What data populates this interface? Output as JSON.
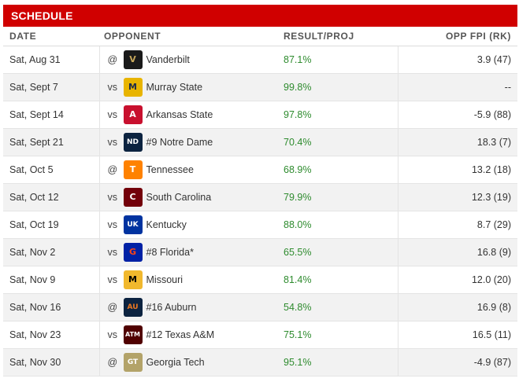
{
  "title": "SCHEDULE",
  "columns": {
    "date": "DATE",
    "opponent": "OPPONENT",
    "result": "RESULT/PROJ",
    "fpi": "OPP FPI (RK)"
  },
  "accent": "#d00000",
  "result_color": "#2e8b2e",
  "games": [
    {
      "date": "Sat, Aug 31",
      "ha": "@",
      "opponent": "Vanderbilt",
      "result": "87.1%",
      "fpi": "3.9 (47)",
      "logo": {
        "icon": "vanderbilt-logo-icon",
        "glyph": "V",
        "bg": "#1a1a1a",
        "fg": "#c8a85c"
      }
    },
    {
      "date": "Sat, Sept 7",
      "ha": "vs",
      "opponent": "Murray State",
      "result": "99.8%",
      "fpi": "--",
      "logo": {
        "icon": "murray-state-logo-icon",
        "glyph": "M",
        "bg": "#e8b400",
        "fg": "#1c2b4a"
      }
    },
    {
      "date": "Sat, Sept 14",
      "ha": "vs",
      "opponent": "Arkansas State",
      "result": "97.8%",
      "fpi": "-5.9 (88)",
      "logo": {
        "icon": "arkansas-state-logo-icon",
        "glyph": "A",
        "bg": "#c8102e",
        "fg": "#ffffff"
      }
    },
    {
      "date": "Sat, Sept 21",
      "ha": "vs",
      "opponent": "#9 Notre Dame",
      "result": "70.4%",
      "fpi": "18.3 (7)",
      "logo": {
        "icon": "notre-dame-logo-icon",
        "glyph": "ND",
        "bg": "#0c2340",
        "fg": "#ffffff"
      }
    },
    {
      "date": "Sat, Oct 5",
      "ha": "@",
      "opponent": "Tennessee",
      "result": "68.9%",
      "fpi": "13.2 (18)",
      "logo": {
        "icon": "tennessee-logo-icon",
        "glyph": "T",
        "bg": "#ff8200",
        "fg": "#ffffff"
      }
    },
    {
      "date": "Sat, Oct 12",
      "ha": "vs",
      "opponent": "South Carolina",
      "result": "79.9%",
      "fpi": "12.3 (19)",
      "logo": {
        "icon": "south-carolina-logo-icon",
        "glyph": "C",
        "bg": "#73000a",
        "fg": "#ffffff"
      }
    },
    {
      "date": "Sat, Oct 19",
      "ha": "vs",
      "opponent": "Kentucky",
      "result": "88.0%",
      "fpi": "8.7 (29)",
      "logo": {
        "icon": "kentucky-logo-icon",
        "glyph": "UK",
        "bg": "#0033a0",
        "fg": "#ffffff"
      }
    },
    {
      "date": "Sat, Nov 2",
      "ha": "vs",
      "opponent": "#8 Florida*",
      "result": "65.5%",
      "fpi": "16.8 (9)",
      "logo": {
        "icon": "florida-logo-icon",
        "glyph": "G",
        "bg": "#0021a5",
        "fg": "#fa4616"
      }
    },
    {
      "date": "Sat, Nov 9",
      "ha": "vs",
      "opponent": "Missouri",
      "result": "81.4%",
      "fpi": "12.0 (20)",
      "logo": {
        "icon": "missouri-logo-icon",
        "glyph": "M",
        "bg": "#f1b82d",
        "fg": "#000000"
      }
    },
    {
      "date": "Sat, Nov 16",
      "ha": "@",
      "opponent": "#16 Auburn",
      "result": "54.8%",
      "fpi": "16.9 (8)",
      "logo": {
        "icon": "auburn-logo-icon",
        "glyph": "AU",
        "bg": "#0c2340",
        "fg": "#e87722"
      }
    },
    {
      "date": "Sat, Nov 23",
      "ha": "vs",
      "opponent": "#12 Texas A&M",
      "result": "75.1%",
      "fpi": "16.5 (11)",
      "logo": {
        "icon": "texas-am-logo-icon",
        "glyph": "ATM",
        "bg": "#500000",
        "fg": "#ffffff"
      }
    },
    {
      "date": "Sat, Nov 30",
      "ha": "@",
      "opponent": "Georgia Tech",
      "result": "95.1%",
      "fpi": "-4.9 (87)",
      "logo": {
        "icon": "georgia-tech-logo-icon",
        "glyph": "GT",
        "bg": "#b3a369",
        "fg": "#ffffff"
      }
    }
  ]
}
